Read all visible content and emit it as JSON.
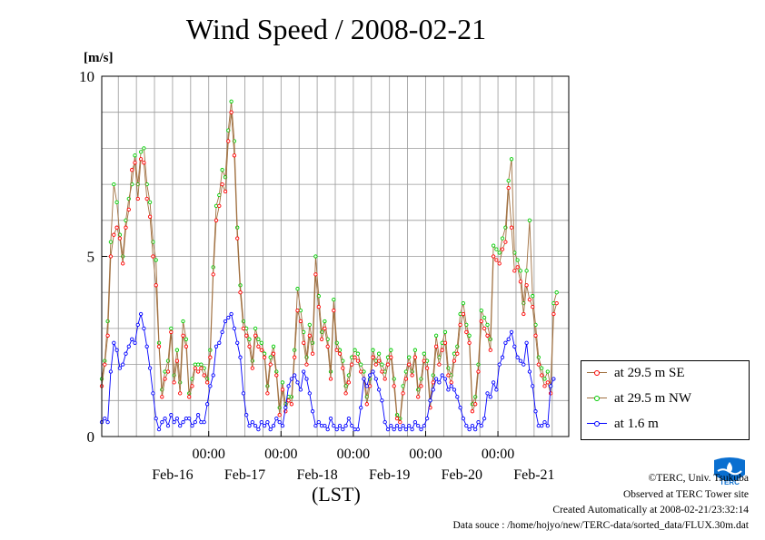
{
  "title": "Wind Speed / 2008-02-21",
  "unit_label": "[m/s]",
  "xlabel": "(LST)",
  "footer": {
    "copyright": "©TERC, Univ. Tsukuba",
    "site": "Observed at TERC Tower site",
    "created": "Created Automatically at 2008-02-21/23:32:14",
    "source": "Data souce : /home/hojyo/new/TERC-data/sorted_data/FLUX.30m.dat"
  },
  "logo_text": "TERC",
  "colors": {
    "se": "#ff0000",
    "nw": "#00cc00",
    "low": "#0000ff",
    "line": "#a07040"
  },
  "chart_data": {
    "type": "line",
    "title": "Wind Speed / 2008-02-21",
    "ylabel": "[m/s]",
    "xlabel": "(LST)",
    "ylim": [
      0,
      10
    ],
    "xlim": [
      "2008-02-15 12:30",
      "2008-02-21 23:30"
    ],
    "yticks": [
      0,
      5,
      10
    ],
    "xticks": [
      "00:00",
      "00:00",
      "00:00",
      "00:00",
      "00:00"
    ],
    "xtick_dates": [
      "2008-02-17 00:00",
      "2008-02-18 00:00",
      "2008-02-19 00:00",
      "2008-02-20 00:00",
      "2008-02-21 00:00"
    ],
    "date_labels": [
      "Feb-16",
      "Feb-17",
      "Feb-18",
      "Feb-19",
      "Feb-20",
      "Feb-21"
    ],
    "grid": true,
    "legend_position": "right",
    "x_interval": "hourly",
    "x_start": "2008-02-15 12:30",
    "series": [
      {
        "name": "at 29.5 m SE",
        "values": [
          1.4,
          2.0,
          2.8,
          5.0,
          5.6,
          5.8,
          5.5,
          4.8,
          5.8,
          6.3,
          7.4,
          7.6,
          6.6,
          7.7,
          7.6,
          6.6,
          6.1,
          5.0,
          4.2,
          2.5,
          1.1,
          1.6,
          1.8,
          2.9,
          1.5,
          2.1,
          1.2,
          2.8,
          2.5,
          1.1,
          1.4,
          1.9,
          1.8,
          1.9,
          1.7,
          1.5,
          2.2,
          4.5,
          6.0,
          6.4,
          7.0,
          6.8,
          8.2,
          9.0,
          7.8,
          5.5,
          4.0,
          3.0,
          2.8,
          2.5,
          1.9,
          2.8,
          2.5,
          2.4,
          2.2,
          1.2,
          2.0,
          2.3,
          1.7,
          0.6,
          1.3,
          0.7,
          1.0,
          0.9,
          2.2,
          3.5,
          3.2,
          2.6,
          2.0,
          2.8,
          2.3,
          4.5,
          3.6,
          2.7,
          3.0,
          2.5,
          1.6,
          3.5,
          2.4,
          2.3,
          1.9,
          1.2,
          1.5,
          2.0,
          2.2,
          2.1,
          1.8,
          1.6,
          0.9,
          1.4,
          2.2,
          2.0,
          2.1,
          1.8,
          1.6,
          2.0,
          2.2,
          1.4,
          0.5,
          0.4,
          1.2,
          1.6,
          2.0,
          1.7,
          2.2,
          1.1,
          1.4,
          2.1,
          1.9,
          0.8,
          1.5,
          2.5,
          2.0,
          2.4,
          2.6,
          1.7,
          1.5,
          2.1,
          2.3,
          3.1,
          3.4,
          2.9,
          2.6,
          0.7,
          0.9,
          1.8,
          3.2,
          3.0,
          2.8,
          2.4,
          5.0,
          4.9,
          4.8,
          5.2,
          5.4,
          6.9,
          5.8,
          4.6,
          4.7,
          4.3,
          3.4,
          4.2,
          3.8,
          3.6,
          2.8,
          2.0,
          1.7,
          1.4,
          1.5,
          1.2,
          3.4,
          3.7
        ]
      },
      {
        "name": "at 29.5 m NW",
        "values": [
          1.6,
          2.1,
          3.2,
          5.4,
          7.0,
          6.5,
          5.6,
          5.0,
          6.0,
          6.6,
          7.0,
          7.8,
          7.0,
          7.9,
          8.0,
          7.0,
          6.5,
          5.4,
          4.9,
          2.6,
          1.3,
          1.8,
          2.1,
          3.0,
          1.7,
          2.4,
          1.5,
          3.2,
          2.7,
          1.2,
          1.6,
          2.0,
          2.0,
          2.0,
          1.9,
          1.6,
          2.4,
          4.7,
          6.4,
          6.7,
          7.4,
          7.2,
          8.5,
          9.3,
          8.2,
          5.8,
          4.2,
          3.2,
          3.0,
          2.7,
          2.1,
          3.0,
          2.7,
          2.6,
          2.3,
          1.4,
          2.2,
          2.5,
          1.8,
          0.8,
          1.5,
          0.9,
          1.1,
          1.1,
          2.4,
          4.1,
          3.5,
          2.9,
          2.2,
          3.1,
          2.6,
          5.0,
          3.9,
          2.9,
          3.2,
          2.7,
          1.8,
          3.8,
          2.6,
          2.4,
          2.1,
          1.4,
          1.7,
          2.2,
          2.4,
          2.3,
          2.0,
          1.8,
          1.1,
          1.6,
          2.4,
          2.1,
          2.3,
          2.0,
          1.8,
          2.2,
          2.4,
          1.6,
          0.6,
          0.5,
          1.4,
          1.8,
          2.2,
          1.8,
          2.4,
          1.3,
          1.6,
          2.3,
          2.1,
          1.0,
          1.7,
          2.8,
          2.2,
          2.6,
          2.9,
          1.9,
          1.7,
          2.3,
          2.5,
          3.4,
          3.7,
          3.1,
          2.8,
          0.9,
          1.1,
          2.0,
          3.5,
          3.3,
          3.1,
          2.7,
          5.3,
          5.2,
          5.1,
          5.5,
          5.8,
          7.1,
          7.7,
          5.1,
          4.9,
          4.6,
          3.7,
          4.6,
          6.0,
          3.9,
          3.1,
          2.2,
          1.9,
          1.6,
          1.8,
          1.4,
          3.7,
          4.0
        ]
      },
      {
        "name": "at 1.6 m",
        "values": [
          0.4,
          0.5,
          0.4,
          1.8,
          2.6,
          2.4,
          1.9,
          2.0,
          2.3,
          2.5,
          2.7,
          2.6,
          3.1,
          3.4,
          3.0,
          2.5,
          1.9,
          1.2,
          0.5,
          0.2,
          0.4,
          0.5,
          0.3,
          0.6,
          0.4,
          0.5,
          0.3,
          0.4,
          0.5,
          0.5,
          0.3,
          0.4,
          0.6,
          0.4,
          0.4,
          0.9,
          1.4,
          1.7,
          2.5,
          2.6,
          2.9,
          3.2,
          3.3,
          3.4,
          3.0,
          2.6,
          2.2,
          1.2,
          0.6,
          0.3,
          0.4,
          0.3,
          0.2,
          0.4,
          0.3,
          0.4,
          0.2,
          0.3,
          0.5,
          0.4,
          0.3,
          0.8,
          1.4,
          1.6,
          1.7,
          1.5,
          1.3,
          1.8,
          1.6,
          1.2,
          0.7,
          0.3,
          0.4,
          0.3,
          0.3,
          0.2,
          0.5,
          0.3,
          0.2,
          0.3,
          0.2,
          0.3,
          0.5,
          0.3,
          0.2,
          0.2,
          0.8,
          1.6,
          1.4,
          1.7,
          1.8,
          1.6,
          1.3,
          1.0,
          0.4,
          0.2,
          0.3,
          0.2,
          0.3,
          0.2,
          0.3,
          0.2,
          0.3,
          0.2,
          0.4,
          0.3,
          0.2,
          0.3,
          0.5,
          1.0,
          1.3,
          1.6,
          1.5,
          1.7,
          1.6,
          1.3,
          1.4,
          1.3,
          1.1,
          0.8,
          0.5,
          0.3,
          0.2,
          0.3,
          0.2,
          0.4,
          0.3,
          0.5,
          1.2,
          1.1,
          1.5,
          1.3,
          2.0,
          2.2,
          2.6,
          2.7,
          2.9,
          2.5,
          2.2,
          2.1,
          2.0,
          2.6,
          1.8,
          1.4,
          0.7,
          0.3,
          0.3,
          0.4,
          0.3,
          1.4,
          1.6
        ]
      }
    ]
  }
}
